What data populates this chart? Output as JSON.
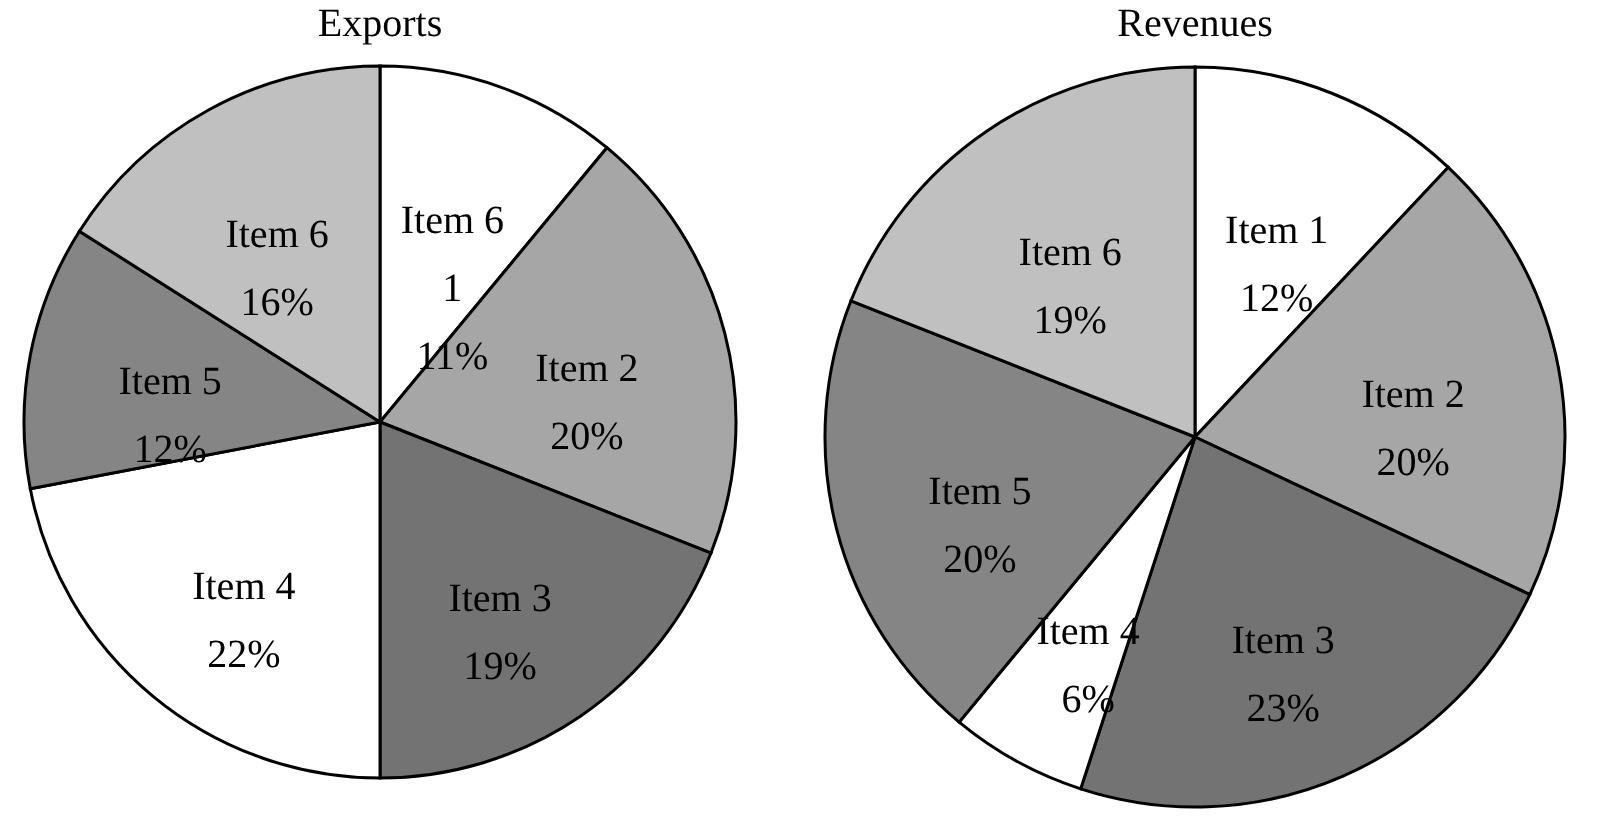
{
  "chart_data": [
    {
      "type": "pie",
      "title": "Exports",
      "categories": [
        "Item 6\n1",
        "Item 2",
        "Item 3",
        "Item 4",
        "Item 5",
        "Item 6"
      ],
      "values": [
        11,
        20,
        19,
        22,
        12,
        16
      ],
      "value_labels": [
        "11%",
        "20%",
        "19%",
        "22%",
        "12%",
        "16%"
      ],
      "colors": [
        "#ffffff",
        "#a6a6a6",
        "#737373",
        "#ffffff",
        "#858585",
        "#c0c0c0"
      ],
      "legend": false
    },
    {
      "type": "pie",
      "title": "Revenues",
      "categories": [
        "Item 1",
        "Item 2",
        "Item 3",
        "Item 4",
        "Item 5",
        "Item 6"
      ],
      "values": [
        12,
        20,
        23,
        6,
        20,
        19
      ],
      "value_labels": [
        "12%",
        "20%",
        "23%",
        "6%",
        "20%",
        "19%"
      ],
      "colors": [
        "#ffffff",
        "#a6a6a6",
        "#737373",
        "#ffffff",
        "#888888",
        "#c0c0c0"
      ],
      "legend": false
    }
  ]
}
